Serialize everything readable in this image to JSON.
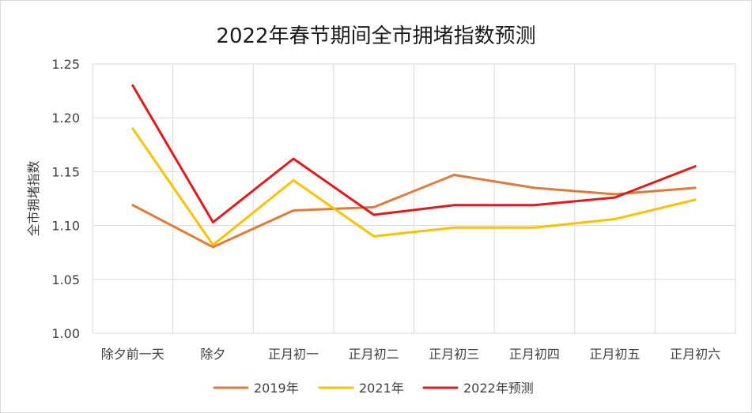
{
  "chart_data": {
    "type": "line",
    "title": "2022年春节期间全市拥堵指数预测",
    "xlabel": "",
    "ylabel": "全市拥堵指数",
    "ylim": [
      1.0,
      1.25
    ],
    "yticks": [
      "1.00",
      "1.05",
      "1.10",
      "1.15",
      "1.20",
      "1.25"
    ],
    "grid": true,
    "legend_position": "bottom",
    "categories": [
      "除夕前一天",
      "除夕",
      "正月初一",
      "正月初二",
      "正月初三",
      "正月初四",
      "正月初五",
      "正月初六"
    ],
    "series": [
      {
        "name": "2019年",
        "color": "#E07B39",
        "values": [
          1.119,
          1.08,
          1.114,
          1.117,
          1.147,
          1.135,
          1.129,
          1.135
        ]
      },
      {
        "name": "2021年",
        "color": "#FFC000",
        "values": [
          1.19,
          1.082,
          1.142,
          1.09,
          1.098,
          1.098,
          1.106,
          1.124
        ]
      },
      {
        "name": "2022年预测",
        "color": "#E31A1C",
        "values": [
          1.23,
          1.103,
          1.162,
          1.11,
          1.119,
          1.119,
          1.126,
          1.155
        ]
      }
    ]
  }
}
